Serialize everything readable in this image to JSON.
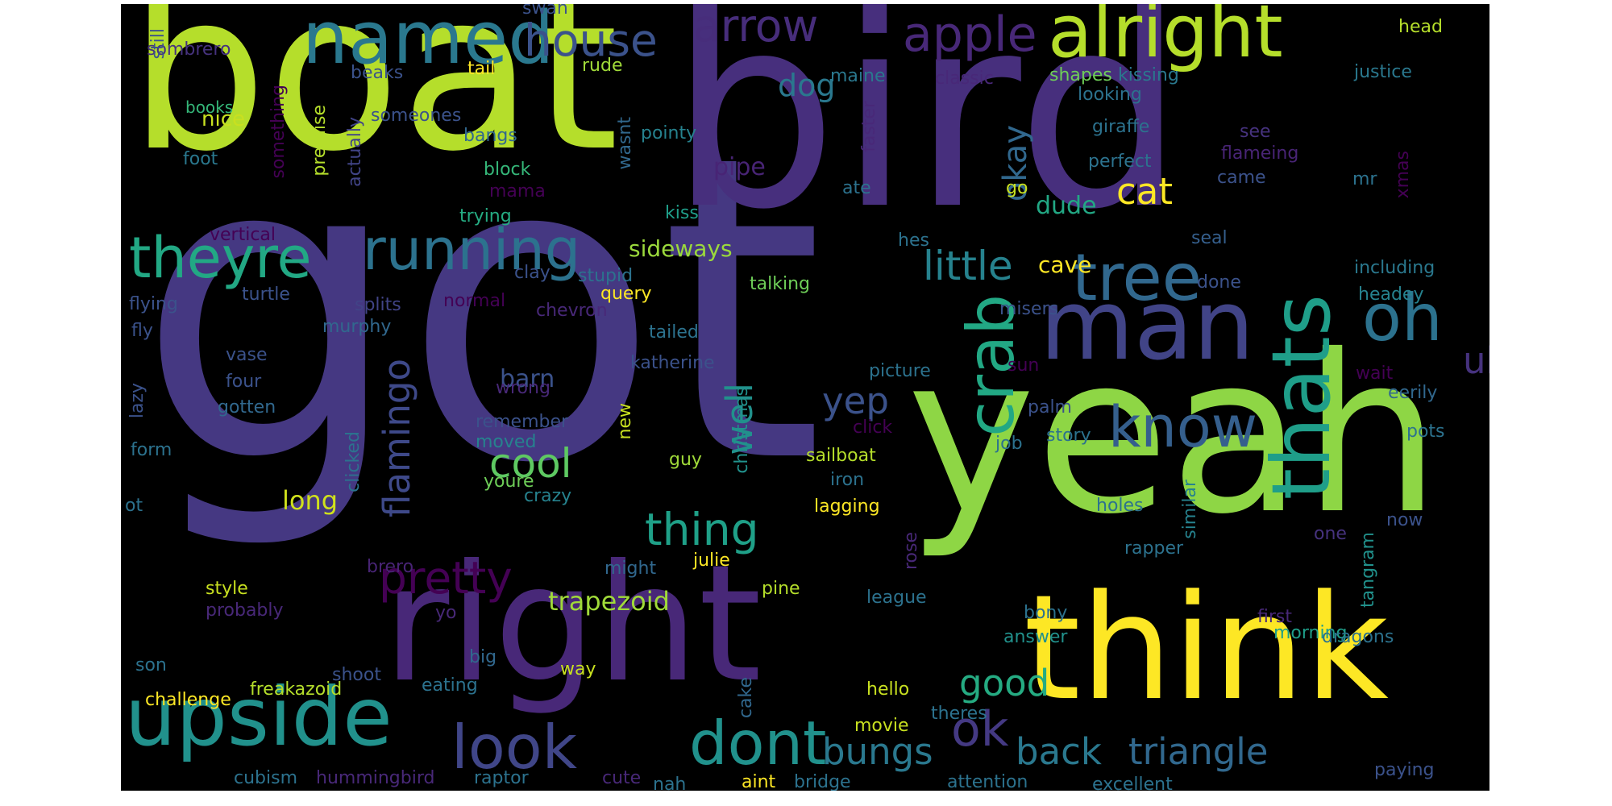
{
  "cloud": {
    "background": "#000000",
    "words": [
      {
        "text": "got",
        "color": "#453882"
      },
      {
        "text": "bird",
        "color": "#472f7d"
      },
      {
        "text": "boat",
        "color": "#b5de2b"
      },
      {
        "text": "yeah",
        "color": "#8ed645"
      },
      {
        "text": "right",
        "color": "#482878"
      },
      {
        "text": "think",
        "color": "#fde725"
      },
      {
        "text": "alright",
        "color": "#b5de2b"
      },
      {
        "text": "named",
        "color": "#2a788e"
      },
      {
        "text": "man",
        "color": "#414487"
      },
      {
        "text": "upside",
        "color": "#21918c"
      },
      {
        "text": "thats",
        "color": "#1f9e89"
      },
      {
        "text": "running",
        "color": "#2c728e"
      },
      {
        "text": "theyre",
        "color": "#22a884"
      },
      {
        "text": "crab",
        "color": "#22a884"
      },
      {
        "text": "tree",
        "color": "#31688e"
      },
      {
        "text": "oh",
        "color": "#2c728e"
      },
      {
        "text": "house",
        "color": "#3b528b"
      },
      {
        "text": "apple",
        "color": "#482878"
      },
      {
        "text": "arrow",
        "color": "#472d7b"
      },
      {
        "text": "dont",
        "color": "#21918c"
      },
      {
        "text": "look",
        "color": "#404688"
      },
      {
        "text": "know",
        "color": "#355f8d"
      },
      {
        "text": "ok",
        "color": "#443983"
      },
      {
        "text": "back",
        "color": "#2a788e"
      },
      {
        "text": "triangle",
        "color": "#31688e"
      },
      {
        "text": "pretty",
        "color": "#440154"
      },
      {
        "text": "flamingo",
        "color": "#3e4989"
      },
      {
        "text": "cool",
        "color": "#5ec962"
      },
      {
        "text": "little",
        "color": "#26828e"
      },
      {
        "text": "okay",
        "color": "#31688e"
      },
      {
        "text": "thing",
        "color": "#1fa088"
      },
      {
        "text": "bungs",
        "color": "#2a788e"
      },
      {
        "text": "good",
        "color": "#25ab82"
      },
      {
        "text": "cat",
        "color": "#fde725"
      },
      {
        "text": "yep",
        "color": "#3b528b"
      },
      {
        "text": "well",
        "color": "#21918c"
      },
      {
        "text": "uh",
        "color": "#46327e"
      },
      {
        "text": "trapezoid",
        "color": "#a0da39"
      },
      {
        "text": "dog",
        "color": "#2a788e"
      },
      {
        "text": "long",
        "color": "#d0e11c"
      },
      {
        "text": "sideways",
        "color": "#9bd93c"
      },
      {
        "text": "pipe",
        "color": "#482475"
      },
      {
        "text": "barn",
        "color": "#3b528b"
      },
      {
        "text": "dude",
        "color": "#22a884"
      },
      {
        "text": "cave",
        "color": "#fde725"
      },
      {
        "text": "nice",
        "color": "#c8e020"
      },
      {
        "text": "books",
        "color": "#35b779"
      },
      {
        "text": "tail",
        "color": "#fde725"
      },
      {
        "text": "swan",
        "color": "#3b528b"
      },
      {
        "text": "head",
        "color": "#b5de2b"
      },
      {
        "text": "sombrero",
        "color": "#46327e"
      },
      {
        "text": "beaks",
        "color": "#3b528b"
      },
      {
        "text": "rude",
        "color": "#a0da39"
      },
      {
        "text": "maine",
        "color": "#2a788e"
      },
      {
        "text": "classic",
        "color": "#482878"
      },
      {
        "text": "shapes",
        "color": "#6ece58"
      },
      {
        "text": "kissing",
        "color": "#2a788e"
      },
      {
        "text": "justice",
        "color": "#2a788e"
      },
      {
        "text": "looking",
        "color": "#2c728e"
      },
      {
        "text": "still",
        "color": "#3b528b"
      },
      {
        "text": "something",
        "color": "#440154"
      },
      {
        "text": "premise",
        "color": "#b5de2b"
      },
      {
        "text": "someones",
        "color": "#3b528b"
      },
      {
        "text": "actually",
        "color": "#414487"
      },
      {
        "text": "bangs",
        "color": "#31688e"
      },
      {
        "text": "pointy",
        "color": "#26828e"
      },
      {
        "text": "wasnt",
        "color": "#31688e"
      },
      {
        "text": "faster",
        "color": "#482878"
      },
      {
        "text": "giraffe",
        "color": "#2c728e"
      },
      {
        "text": "see",
        "color": "#46327e"
      },
      {
        "text": "foot",
        "color": "#2a788e"
      },
      {
        "text": "block",
        "color": "#35b779"
      },
      {
        "text": "mama",
        "color": "#440154"
      },
      {
        "text": "perfect",
        "color": "#2c728e"
      },
      {
        "text": "flameing",
        "color": "#482475"
      },
      {
        "text": "ate",
        "color": "#2c728e"
      },
      {
        "text": "go",
        "color": "#c8e020"
      },
      {
        "text": "came",
        "color": "#3b528b"
      },
      {
        "text": "mr",
        "color": "#2c728e"
      },
      {
        "text": "xmas",
        "color": "#440154"
      },
      {
        "text": "trying",
        "color": "#25ab82"
      },
      {
        "text": "kiss",
        "color": "#1f9e89"
      },
      {
        "text": "vertical",
        "color": "#440154"
      },
      {
        "text": "hes",
        "color": "#2c728e"
      },
      {
        "text": "seal",
        "color": "#355f8d"
      },
      {
        "text": "including",
        "color": "#2a788e"
      },
      {
        "text": "clay",
        "color": "#3b528b"
      },
      {
        "text": "stupid",
        "color": "#2c728e"
      },
      {
        "text": "done",
        "color": "#3b528b"
      },
      {
        "text": "talking",
        "color": "#6ece58"
      },
      {
        "text": "turtle",
        "color": "#3b528b"
      },
      {
        "text": "query",
        "color": "#fde725"
      },
      {
        "text": "headey",
        "color": "#26828e"
      },
      {
        "text": "flying",
        "color": "#3b528b"
      },
      {
        "text": "splits",
        "color": "#414487"
      },
      {
        "text": "normal",
        "color": "#440154"
      },
      {
        "text": "chevron",
        "color": "#482878"
      },
      {
        "text": "misers",
        "color": "#3b528b"
      },
      {
        "text": "fly",
        "color": "#3b528b"
      },
      {
        "text": "murphy",
        "color": "#31688e"
      },
      {
        "text": "tailed",
        "color": "#2c728e"
      },
      {
        "text": "vase",
        "color": "#3b528b"
      },
      {
        "text": "katherine",
        "color": "#3b528b"
      },
      {
        "text": "picture",
        "color": "#2c728e"
      },
      {
        "text": "sun",
        "color": "#440154"
      },
      {
        "text": "wait",
        "color": "#440154"
      },
      {
        "text": "four",
        "color": "#3b528b"
      },
      {
        "text": "wrong",
        "color": "#482878"
      },
      {
        "text": "eerily",
        "color": "#31688e"
      },
      {
        "text": "gotten",
        "color": "#31688e"
      },
      {
        "text": "lazy",
        "color": "#3b528b"
      },
      {
        "text": "remember",
        "color": "#3b528b"
      },
      {
        "text": "new",
        "color": "#c8e020"
      },
      {
        "text": "christmas",
        "color": "#21918c"
      },
      {
        "text": "palm",
        "color": "#3b528b"
      },
      {
        "text": "click",
        "color": "#440154"
      },
      {
        "text": "pots",
        "color": "#2c728e"
      },
      {
        "text": "story",
        "color": "#2c728e"
      },
      {
        "text": "form",
        "color": "#2c728e"
      },
      {
        "text": "moved",
        "color": "#26828e"
      },
      {
        "text": "sailboat",
        "color": "#b5de2b"
      },
      {
        "text": "job",
        "color": "#2c728e"
      },
      {
        "text": "clicked",
        "color": "#2c728e"
      },
      {
        "text": "guy",
        "color": "#a0da39"
      },
      {
        "text": "iron",
        "color": "#2c728e"
      },
      {
        "text": "similar",
        "color": "#26828e"
      },
      {
        "text": "youre",
        "color": "#6ece58"
      },
      {
        "text": "crazy",
        "color": "#26828e"
      },
      {
        "text": "ot",
        "color": "#2c728e"
      },
      {
        "text": "lagging",
        "color": "#fde725"
      },
      {
        "text": "holes",
        "color": "#2c728e"
      },
      {
        "text": "now",
        "color": "#3b528b"
      },
      {
        "text": "rapper",
        "color": "#2c728e"
      },
      {
        "text": "one",
        "color": "#46327e"
      },
      {
        "text": "julie",
        "color": "#fde725"
      },
      {
        "text": "rose",
        "color": "#482878"
      },
      {
        "text": "might",
        "color": "#31688e"
      },
      {
        "text": "brero",
        "color": "#482475"
      },
      {
        "text": "tangram",
        "color": "#21918c"
      },
      {
        "text": "style",
        "color": "#c8e020"
      },
      {
        "text": "pine",
        "color": "#b5de2b"
      },
      {
        "text": "league",
        "color": "#2c728e"
      },
      {
        "text": "probably",
        "color": "#482878"
      },
      {
        "text": "bony",
        "color": "#2c728e"
      },
      {
        "text": "first",
        "color": "#482878"
      },
      {
        "text": "yo",
        "color": "#482878"
      },
      {
        "text": "morning",
        "color": "#1f9e89"
      },
      {
        "text": "answer",
        "color": "#21918c"
      },
      {
        "text": "dragons",
        "color": "#2c728e"
      },
      {
        "text": "son",
        "color": "#2c728e"
      },
      {
        "text": "big",
        "color": "#31688e"
      },
      {
        "text": "way",
        "color": "#c8e020"
      },
      {
        "text": "shoot",
        "color": "#3b528b"
      },
      {
        "text": "cake",
        "color": "#31688e"
      },
      {
        "text": "challenge",
        "color": "#fde725"
      },
      {
        "text": "eating",
        "color": "#2c728e"
      },
      {
        "text": "freakazoid",
        "color": "#b5de2b"
      },
      {
        "text": "hello",
        "color": "#c8e020"
      },
      {
        "text": "movie",
        "color": "#c8e020"
      },
      {
        "text": "theres",
        "color": "#2c728e"
      },
      {
        "text": "cubism",
        "color": "#2c728e"
      },
      {
        "text": "hummingbird",
        "color": "#482878"
      },
      {
        "text": "raptor",
        "color": "#2c728e"
      },
      {
        "text": "cute",
        "color": "#482878"
      },
      {
        "text": "nah",
        "color": "#2c728e"
      },
      {
        "text": "aint",
        "color": "#fde725"
      },
      {
        "text": "bridge",
        "color": "#2c728e"
      },
      {
        "text": "attention",
        "color": "#2c728e"
      },
      {
        "text": "excellent",
        "color": "#2c728e"
      },
      {
        "text": "paying",
        "color": "#3b528b"
      }
    ]
  }
}
